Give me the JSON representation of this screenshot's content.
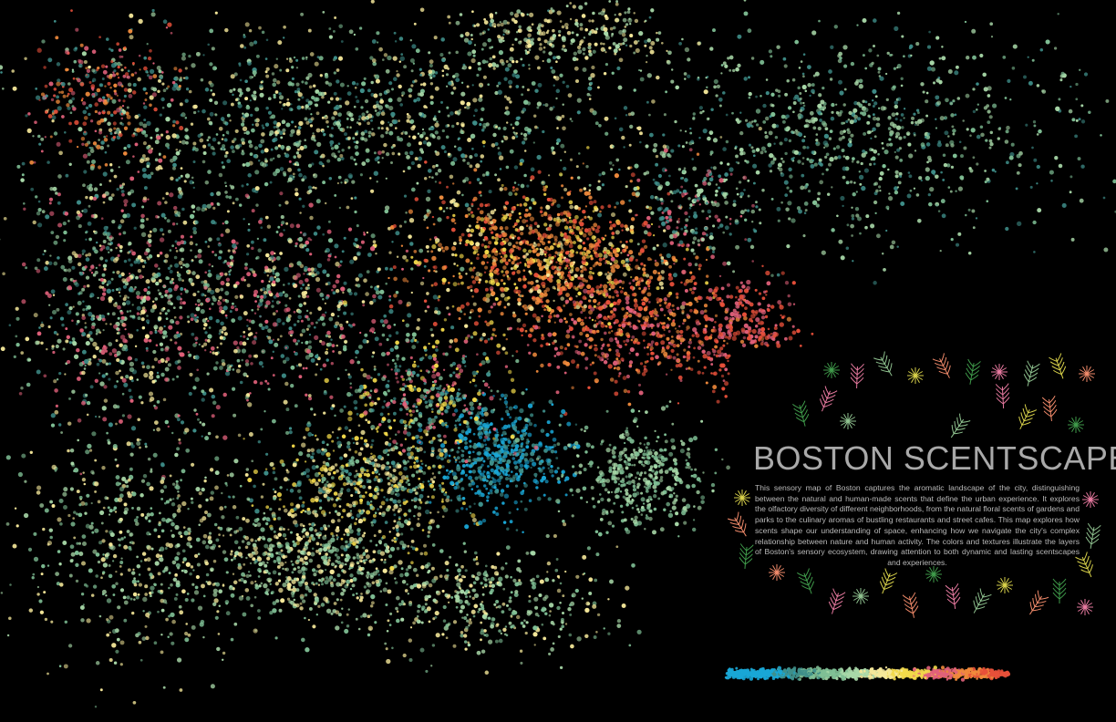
{
  "title": "BOSTON SCENTSCAPE",
  "description": "This sensory map of Boston captures the aromatic landscape of the city, distinguishing between the natural and human-made scents that define the urban experience. It explores the olfactory diversity of different neighborhoods, from the natural floral scents of gardens and parks to the culinary aromas of bustling restaurants and street cafes. This map explores how scents shape our understanding of space, enhancing how we navigate the city's complex relationship between nature and human activity. The colors and textures illustrate the layers of Boston's sensory ecosystem, drawing attention to both dynamic and lasting scentscapes and experiences.",
  "palette": {
    "cyan": "#19a7d6",
    "teal": "#3f8f8a",
    "sage": "#7fbf95",
    "mint": "#a8d8a8",
    "cream": "#f5e89a",
    "yellow": "#f2d94a",
    "pink": "#e0607a",
    "orange": "#f08a3c",
    "red": "#e8503a",
    "background": "#000000"
  },
  "ornament_colors": [
    "#3f9a4a",
    "#e87aa0",
    "#8fc28f",
    "#d9d24a",
    "#f08a6a"
  ],
  "ornament_icons": [
    "leaf-sprig-icon",
    "flower-burst-icon",
    "dandelion-icon",
    "herb-sprig-icon"
  ]
}
